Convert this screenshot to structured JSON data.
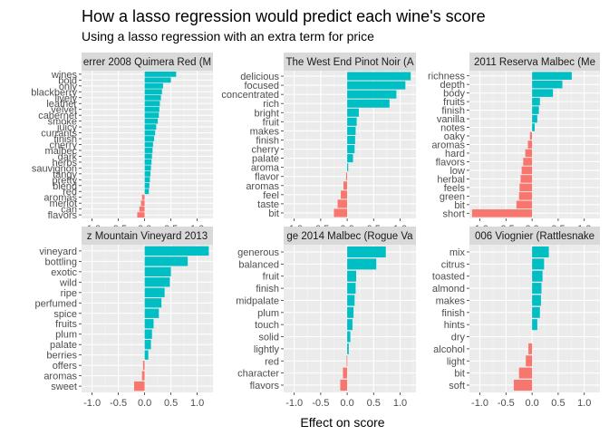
{
  "chart_data": {
    "type": "bar",
    "title": "How a lasso regression would predict each wine's score",
    "subtitle": "Using a lasso regression with an extra term for price",
    "xlabel": "Effect on score",
    "ylabel": "",
    "xlim": [
      -1.2,
      1.3
    ],
    "x_ticks": [
      -1.0,
      -0.5,
      0.0,
      0.5,
      1.0
    ],
    "x_tick_labels": [
      "-1.0",
      "-0.5",
      "0.0",
      "0.5",
      "1.0"
    ],
    "colors": {
      "positive": "#00BFC4",
      "negative": "#F8766D"
    },
    "panels": [
      {
        "strip": "errer 2008 Quimera Red (M",
        "categories": [
          "wines",
          "bold",
          "only",
          "blackberry",
          "lively",
          "leather",
          "velvet",
          "cabernet",
          "smoke",
          "juicy",
          "currants",
          "finish",
          "cherry",
          "malbec",
          "dark",
          "herbs",
          "sauvignon",
          "tangy",
          "pretty",
          "blend",
          "red",
          "aromas",
          "merlot",
          "can",
          "flavors"
        ],
        "values": [
          0.6,
          0.5,
          0.35,
          0.33,
          0.31,
          0.29,
          0.28,
          0.27,
          0.25,
          0.22,
          0.2,
          0.18,
          0.16,
          0.15,
          0.14,
          0.13,
          0.12,
          0.11,
          0.1,
          0.09,
          0.08,
          -0.05,
          -0.07,
          -0.1,
          -0.14
        ]
      },
      {
        "strip": "The West End Pinot Noir (A",
        "categories": [
          "delicious",
          "focused",
          "concentrated",
          "rich",
          "bright",
          "fruit",
          "makes",
          "finish",
          "cherry",
          "palate",
          "aroma",
          "flavor",
          "aromas",
          "feel",
          "taste",
          "bit"
        ],
        "values": [
          1.2,
          1.1,
          0.93,
          0.8,
          0.22,
          0.18,
          0.16,
          0.15,
          0.14,
          0.11,
          0.02,
          -0.02,
          -0.07,
          -0.12,
          -0.18,
          -0.25
        ]
      },
      {
        "strip": "2011 Reserva Malbec (Me",
        "categories": [
          "richness",
          "depth",
          "body",
          "fruits",
          "finish",
          "vanilla",
          "notes",
          "oaky",
          "aromas",
          "hard",
          "flavors",
          "low",
          "herbal",
          "feels",
          "green",
          "bit",
          "short"
        ],
        "values": [
          0.76,
          0.58,
          0.4,
          0.15,
          0.13,
          0.1,
          0.05,
          -0.04,
          -0.08,
          -0.13,
          -0.17,
          -0.2,
          -0.22,
          -0.24,
          -0.25,
          -0.3,
          -1.15
        ]
      },
      {
        "strip": "z Mountain Vineyard 2013",
        "categories": [
          "vineyard",
          "bottling",
          "exotic",
          "wild",
          "ripe",
          "perfumed",
          "spice",
          "fruits",
          "plum",
          "palate",
          "berries",
          "offers",
          "aromas",
          "sweet"
        ],
        "values": [
          1.22,
          0.82,
          0.5,
          0.48,
          0.38,
          0.32,
          0.27,
          0.17,
          0.14,
          0.12,
          0.07,
          -0.03,
          -0.05,
          -0.2
        ]
      },
      {
        "strip": "ge 2014 Malbec (Rogue Va",
        "categories": [
          "generous",
          "balanced",
          "fruit",
          "finish",
          "midpalate",
          "plum",
          "touch",
          "solid",
          "lightly",
          "red",
          "character",
          "flavors"
        ],
        "values": [
          0.73,
          0.55,
          0.17,
          0.16,
          0.14,
          0.12,
          0.1,
          0.06,
          0.03,
          -0.01,
          -0.08,
          -0.13
        ]
      },
      {
        "strip": "006 Viognier (Rattlesnake",
        "categories": [
          "mix",
          "citrus",
          "toasted",
          "almond",
          "makes",
          "finish",
          "hints",
          "dry",
          "alcohol",
          "light",
          "bit",
          "soft"
        ],
        "values": [
          0.32,
          0.23,
          0.2,
          0.18,
          0.17,
          0.15,
          0.1,
          0.0,
          -0.07,
          -0.12,
          -0.25,
          -0.35
        ]
      }
    ]
  }
}
